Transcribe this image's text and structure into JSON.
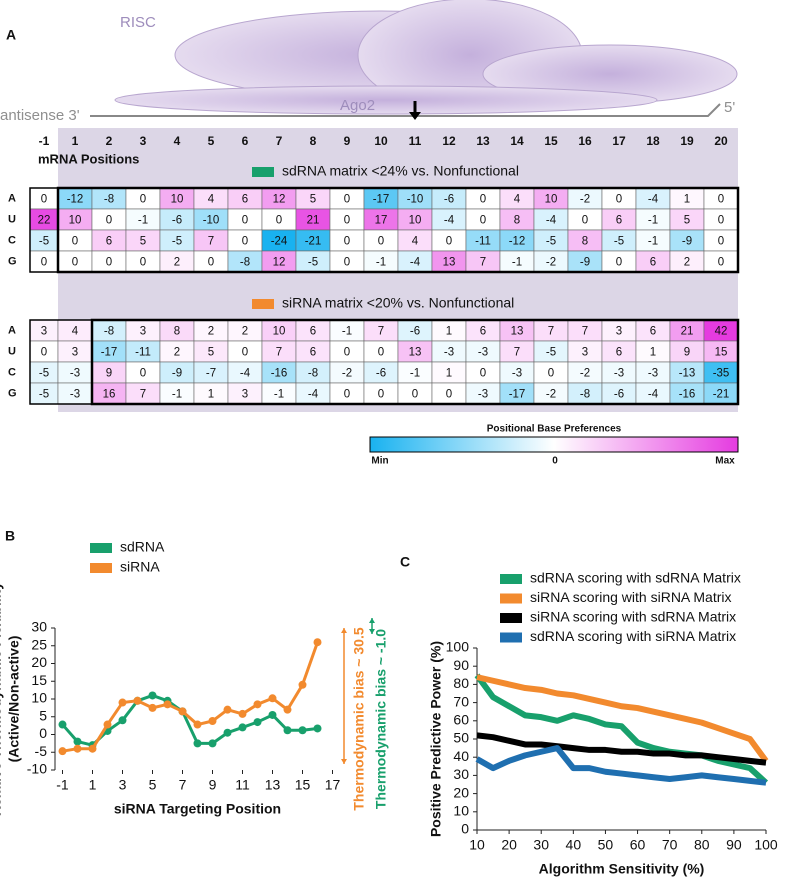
{
  "diagram": {
    "panel": "A",
    "risc": "RISC",
    "ago2": "Ago2",
    "antisense": "antisense 3'",
    "five_prime": "5'"
  },
  "colorbar": {
    "title": "Positional Base Preferences",
    "labels": [
      "Min",
      "0",
      "Max"
    ],
    "min_color": "#19b2f0",
    "mid_color": "#ffffff",
    "max_color": "#e53be0"
  },
  "chart_data": [
    {
      "type": "heatmap",
      "title": "sdRNA matrix <24% vs. Nonfunctional",
      "color": "#18a06c",
      "columns_label": "mRNA Positions",
      "columns": [
        -1,
        1,
        2,
        3,
        4,
        5,
        6,
        7,
        8,
        9,
        10,
        11,
        12,
        13,
        14,
        15,
        16,
        17,
        18,
        19,
        20
      ],
      "rows": [
        "A",
        "U",
        "C",
        "G"
      ],
      "values": [
        [
          0,
          -12,
          -8,
          0,
          10,
          4,
          6,
          12,
          5,
          0,
          -17,
          -10,
          -6,
          0,
          4,
          10,
          -2,
          0,
          -4,
          1,
          0
        ],
        [
          22,
          10,
          0,
          -1,
          -6,
          -10,
          0,
          0,
          21,
          0,
          17,
          10,
          -4,
          0,
          8,
          -4,
          0,
          6,
          -1,
          5,
          0
        ],
        [
          -5,
          0,
          6,
          5,
          -5,
          7,
          0,
          -24,
          -21,
          0,
          0,
          4,
          0,
          -11,
          -12,
          -5,
          8,
          -5,
          -1,
          -9,
          0
        ],
        [
          0,
          0,
          0,
          0,
          2,
          0,
          -8,
          12,
          -5,
          0,
          -1,
          -4,
          13,
          7,
          -1,
          -2,
          -9,
          0,
          6,
          2,
          0
        ]
      ]
    },
    {
      "type": "heatmap",
      "title": "siRNA matrix <20% vs. Nonfunctional",
      "color": "#f28a2e",
      "rows": [
        "A",
        "U",
        "C",
        "G"
      ],
      "values": [
        [
          3,
          4,
          -8,
          3,
          8,
          2,
          2,
          10,
          6,
          -1,
          7,
          -6,
          1,
          6,
          13,
          7,
          7,
          3,
          6,
          21,
          42
        ],
        [
          0,
          3,
          -17,
          -11,
          2,
          5,
          0,
          7,
          6,
          0,
          0,
          13,
          -3,
          -3,
          7,
          -5,
          3,
          6,
          1,
          9,
          15
        ],
        [
          -5,
          -3,
          9,
          0,
          -9,
          -7,
          -4,
          -16,
          -8,
          -2,
          -6,
          -1,
          1,
          0,
          -3,
          0,
          -2,
          -3,
          -3,
          -13,
          -35
        ],
        [
          -5,
          -3,
          16,
          7,
          -1,
          1,
          3,
          -1,
          -4,
          0,
          0,
          0,
          0,
          -3,
          -17,
          -2,
          -8,
          -6,
          -4,
          -16,
          -21
        ]
      ]
    },
    {
      "type": "line",
      "panel": "B",
      "xlabel": "siRNA Targeting Position",
      "ylabel": [
        "Relative Thermodynamic Flexibility",
        "(Active/Non-active)"
      ],
      "x": [
        -1,
        0,
        1,
        2,
        3,
        4,
        5,
        6,
        7,
        8,
        9,
        10,
        11,
        12,
        13,
        14,
        15,
        16
      ],
      "xlim": [
        -1.5,
        17.5
      ],
      "xticks": [
        -1,
        1,
        3,
        5,
        7,
        9,
        11,
        13,
        15,
        17
      ],
      "ylim": [
        -10,
        30
      ],
      "yticks": [
        -10,
        -5,
        0,
        5,
        10,
        15,
        20,
        25,
        30
      ],
      "markers": true,
      "series": [
        {
          "name": "sdRNA",
          "color": "#18a06c",
          "values": [
            2.8,
            -2,
            -3,
            1,
            4,
            9.5,
            11,
            9.5,
            6.5,
            -2.5,
            -2.5,
            0.5,
            2,
            3.5,
            5.5,
            1.2,
            1.2,
            1.7
          ]
        },
        {
          "name": "siRNA",
          "color": "#f28a2e",
          "values": [
            -4.7,
            -4,
            -4,
            2.8,
            9,
            9.5,
            7.5,
            8.5,
            6.5,
            2.8,
            3.8,
            7,
            5.8,
            8.5,
            10.2,
            7,
            14,
            26
          ]
        }
      ],
      "annotations": [
        {
          "text": "Thermodynamic bias ~ 30.5",
          "color": "#f28a2e"
        },
        {
          "text": "Thermodynamic bias ~ -1.0",
          "color": "#18a06c"
        }
      ]
    },
    {
      "type": "line",
      "panel": "C",
      "xlabel": "Algorithm Sensitivity (%)",
      "ylabel": [
        "Positive Predictive Power (%)"
      ],
      "x": [
        10,
        15,
        20,
        25,
        30,
        35,
        40,
        45,
        50,
        55,
        60,
        65,
        70,
        75,
        80,
        85,
        90,
        95,
        100
      ],
      "xlim": [
        10,
        100
      ],
      "xticks": [
        10,
        20,
        30,
        40,
        50,
        60,
        70,
        80,
        90,
        100
      ],
      "ylim": [
        0,
        100
      ],
      "yticks": [
        0,
        10,
        20,
        30,
        40,
        50,
        60,
        70,
        80,
        90,
        100
      ],
      "markers": false,
      "series": [
        {
          "name": "sdRNA scoring with sdRNA Matrix",
          "color": "#18a06c",
          "values": [
            85,
            73,
            68,
            63,
            62,
            60,
            63,
            61,
            58,
            57,
            48,
            45,
            43,
            42,
            41,
            38,
            36,
            34,
            26
          ]
        },
        {
          "name": "siRNA scoring with siRNA Matrix",
          "color": "#f28a2e",
          "values": [
            84,
            82,
            80,
            78,
            77,
            75,
            74,
            72,
            70,
            68,
            67,
            65,
            63,
            61,
            59,
            56,
            53,
            50,
            38
          ]
        },
        {
          "name": "siRNA scoring with sdRNA Matrix",
          "color": "#000000",
          "values": [
            52,
            51,
            49,
            47,
            47,
            46,
            45,
            44,
            44,
            43,
            43,
            42,
            42,
            41,
            41,
            40,
            39,
            38,
            37
          ]
        },
        {
          "name": "sdRNA scoring with siRNA Matrix",
          "color": "#1f6fb0",
          "values": [
            39,
            34,
            38,
            41,
            43,
            45,
            34,
            34,
            32,
            31,
            30,
            29,
            28,
            29,
            30,
            29,
            28,
            27,
            26
          ]
        }
      ]
    }
  ]
}
